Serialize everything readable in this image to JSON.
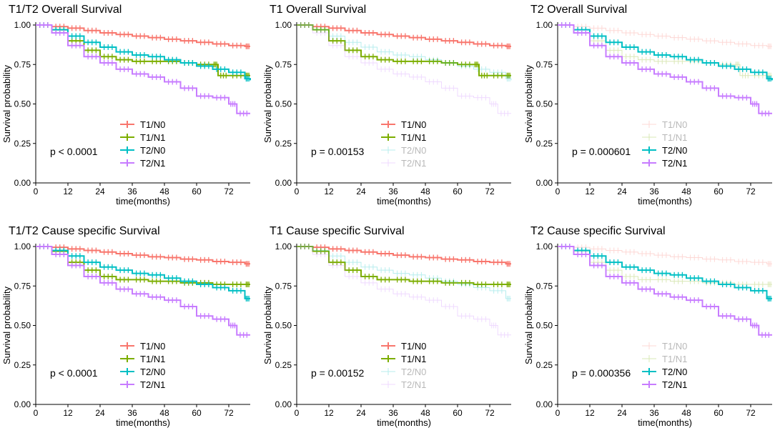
{
  "figure": {
    "colors": {
      "T1/N0": "#f8766d",
      "T1/N1": "#7cae00",
      "T2/N0": "#00bfc4",
      "T2/N1": "#c77cff"
    },
    "x_axis_label": "time(months)",
    "y_axis_label": "Survival probability",
    "y_ticks": [
      "0.00",
      "0.25",
      "0.50",
      "0.75",
      "1.00"
    ],
    "x_ticks": [
      "0",
      "12",
      "24",
      "36",
      "48",
      "60",
      "72"
    ]
  },
  "chart_data": [
    {
      "type": "line",
      "title": "T1/T2 Overall Survival",
      "p_value": "p < 0.0001",
      "xlabel": "time(months)",
      "ylabel": "Survival probability",
      "xlim": [
        0,
        80
      ],
      "ylim": [
        0,
        1
      ],
      "faded": [],
      "series": [
        {
          "name": "T1/N0",
          "x": [
            0,
            6,
            12,
            18,
            24,
            30,
            36,
            42,
            48,
            54,
            60,
            66,
            72,
            78,
            80
          ],
          "y": [
            1,
            0.99,
            0.98,
            0.965,
            0.95,
            0.94,
            0.93,
            0.92,
            0.91,
            0.9,
            0.89,
            0.88,
            0.87,
            0.865,
            0.865
          ]
        },
        {
          "name": "T1/N1",
          "x": [
            0,
            6,
            12,
            18,
            24,
            30,
            36,
            42,
            48,
            54,
            60,
            66,
            68,
            72,
            78,
            80
          ],
          "y": [
            1,
            0.97,
            0.9,
            0.84,
            0.8,
            0.78,
            0.77,
            0.77,
            0.77,
            0.76,
            0.75,
            0.75,
            0.68,
            0.68,
            0.68,
            0.68
          ]
        },
        {
          "name": "T2/N0",
          "x": [
            0,
            6,
            12,
            18,
            24,
            30,
            36,
            42,
            48,
            54,
            60,
            66,
            72,
            78,
            80
          ],
          "y": [
            1,
            0.97,
            0.93,
            0.89,
            0.86,
            0.83,
            0.81,
            0.8,
            0.78,
            0.76,
            0.74,
            0.72,
            0.7,
            0.66,
            0.65
          ]
        },
        {
          "name": "T2/N1",
          "x": [
            0,
            6,
            12,
            18,
            24,
            30,
            36,
            42,
            48,
            54,
            60,
            66,
            72,
            75,
            80
          ],
          "y": [
            1,
            0.95,
            0.87,
            0.8,
            0.76,
            0.72,
            0.69,
            0.67,
            0.64,
            0.6,
            0.55,
            0.54,
            0.5,
            0.44,
            0.44
          ]
        }
      ]
    },
    {
      "type": "line",
      "title": "T1 Overall Survival",
      "p_value": "p = 0.00153",
      "xlabel": "time(months)",
      "ylabel": "Survival probability",
      "xlim": [
        0,
        80
      ],
      "ylim": [
        0,
        1
      ],
      "faded": [
        "T2/N0",
        "T2/N1"
      ],
      "series": [
        {
          "name": "T1/N0",
          "x": [
            0,
            6,
            12,
            18,
            24,
            30,
            36,
            42,
            48,
            54,
            60,
            66,
            72,
            78,
            80
          ],
          "y": [
            1,
            0.99,
            0.98,
            0.965,
            0.95,
            0.94,
            0.93,
            0.92,
            0.91,
            0.9,
            0.89,
            0.88,
            0.87,
            0.865,
            0.865
          ]
        },
        {
          "name": "T1/N1",
          "x": [
            0,
            6,
            12,
            18,
            24,
            30,
            36,
            42,
            48,
            54,
            60,
            66,
            68,
            72,
            78,
            80
          ],
          "y": [
            1,
            0.97,
            0.9,
            0.84,
            0.8,
            0.78,
            0.77,
            0.77,
            0.77,
            0.76,
            0.75,
            0.75,
            0.68,
            0.68,
            0.68,
            0.68
          ]
        },
        {
          "name": "T2/N0",
          "x": [
            0,
            6,
            12,
            18,
            24,
            30,
            36,
            42,
            48,
            54,
            60,
            66,
            72,
            78,
            80
          ],
          "y": [
            1,
            0.97,
            0.93,
            0.89,
            0.86,
            0.83,
            0.81,
            0.8,
            0.78,
            0.76,
            0.74,
            0.72,
            0.7,
            0.66,
            0.65
          ]
        },
        {
          "name": "T2/N1",
          "x": [
            0,
            6,
            12,
            18,
            24,
            30,
            36,
            42,
            48,
            54,
            60,
            66,
            72,
            75,
            80
          ],
          "y": [
            1,
            0.95,
            0.87,
            0.8,
            0.76,
            0.72,
            0.69,
            0.67,
            0.64,
            0.6,
            0.55,
            0.54,
            0.5,
            0.44,
            0.44
          ]
        }
      ]
    },
    {
      "type": "line",
      "title": "T2 Overall Survival",
      "p_value": "p = 0.000601",
      "xlabel": "time(months)",
      "ylabel": "Survival probability",
      "xlim": [
        0,
        80
      ],
      "ylim": [
        0,
        1
      ],
      "faded": [
        "T1/N0",
        "T1/N1"
      ],
      "series": [
        {
          "name": "T1/N0",
          "x": [
            0,
            6,
            12,
            18,
            24,
            30,
            36,
            42,
            48,
            54,
            60,
            66,
            72,
            78,
            80
          ],
          "y": [
            1,
            0.99,
            0.98,
            0.965,
            0.95,
            0.94,
            0.93,
            0.92,
            0.91,
            0.9,
            0.89,
            0.88,
            0.87,
            0.865,
            0.865
          ]
        },
        {
          "name": "T1/N1",
          "x": [
            0,
            6,
            12,
            18,
            24,
            30,
            36,
            42,
            48,
            54,
            60,
            66,
            68,
            72,
            78,
            80
          ],
          "y": [
            1,
            0.97,
            0.9,
            0.84,
            0.8,
            0.78,
            0.77,
            0.77,
            0.77,
            0.76,
            0.75,
            0.75,
            0.68,
            0.68,
            0.68,
            0.68
          ]
        },
        {
          "name": "T2/N0",
          "x": [
            0,
            6,
            12,
            18,
            24,
            30,
            36,
            42,
            48,
            54,
            60,
            66,
            72,
            78,
            80
          ],
          "y": [
            1,
            0.97,
            0.93,
            0.89,
            0.86,
            0.83,
            0.81,
            0.8,
            0.78,
            0.76,
            0.74,
            0.72,
            0.7,
            0.66,
            0.65
          ]
        },
        {
          "name": "T2/N1",
          "x": [
            0,
            6,
            12,
            18,
            24,
            30,
            36,
            42,
            48,
            54,
            60,
            66,
            72,
            75,
            80
          ],
          "y": [
            1,
            0.95,
            0.87,
            0.8,
            0.76,
            0.72,
            0.69,
            0.67,
            0.64,
            0.6,
            0.55,
            0.54,
            0.5,
            0.44,
            0.44
          ]
        }
      ]
    },
    {
      "type": "line",
      "title": "T1/T2 Cause specific Survival",
      "p_value": "p < 0.0001",
      "xlabel": "time(months)",
      "ylabel": "Survival probability",
      "xlim": [
        0,
        80
      ],
      "ylim": [
        0,
        1
      ],
      "faded": [],
      "series": [
        {
          "name": "T1/N0",
          "x": [
            0,
            6,
            12,
            18,
            24,
            30,
            36,
            42,
            48,
            54,
            60,
            66,
            72,
            78,
            80
          ],
          "y": [
            1,
            0.995,
            0.985,
            0.975,
            0.965,
            0.955,
            0.945,
            0.935,
            0.93,
            0.92,
            0.915,
            0.905,
            0.9,
            0.89,
            0.89
          ]
        },
        {
          "name": "T1/N1",
          "x": [
            0,
            6,
            12,
            18,
            24,
            30,
            36,
            42,
            48,
            54,
            60,
            66,
            72,
            78,
            80
          ],
          "y": [
            1,
            0.97,
            0.9,
            0.85,
            0.81,
            0.79,
            0.79,
            0.78,
            0.78,
            0.77,
            0.77,
            0.76,
            0.76,
            0.76,
            0.76
          ]
        },
        {
          "name": "T2/N0",
          "x": [
            0,
            6,
            12,
            18,
            24,
            30,
            36,
            42,
            48,
            54,
            60,
            66,
            72,
            78,
            80
          ],
          "y": [
            1,
            0.975,
            0.94,
            0.9,
            0.87,
            0.85,
            0.83,
            0.82,
            0.8,
            0.78,
            0.76,
            0.74,
            0.72,
            0.67,
            0.67
          ]
        },
        {
          "name": "T2/N1",
          "x": [
            0,
            6,
            12,
            18,
            24,
            30,
            36,
            42,
            48,
            54,
            60,
            66,
            72,
            75,
            80
          ],
          "y": [
            1,
            0.95,
            0.88,
            0.81,
            0.77,
            0.73,
            0.7,
            0.68,
            0.66,
            0.62,
            0.56,
            0.54,
            0.5,
            0.44,
            0.44
          ]
        }
      ]
    },
    {
      "type": "line",
      "title": "T1 Cause specific Survival",
      "p_value": "p = 0.00152",
      "xlabel": "time(months)",
      "ylabel": "Survival probability",
      "xlim": [
        0,
        80
      ],
      "ylim": [
        0,
        1
      ],
      "faded": [
        "T2/N0",
        "T2/N1"
      ],
      "series": [
        {
          "name": "T1/N0",
          "x": [
            0,
            6,
            12,
            18,
            24,
            30,
            36,
            42,
            48,
            54,
            60,
            66,
            72,
            78,
            80
          ],
          "y": [
            1,
            0.995,
            0.985,
            0.975,
            0.965,
            0.955,
            0.945,
            0.935,
            0.93,
            0.92,
            0.915,
            0.905,
            0.9,
            0.89,
            0.89
          ]
        },
        {
          "name": "T1/N1",
          "x": [
            0,
            6,
            12,
            18,
            24,
            30,
            36,
            42,
            48,
            54,
            60,
            66,
            72,
            78,
            80
          ],
          "y": [
            1,
            0.97,
            0.9,
            0.85,
            0.81,
            0.79,
            0.79,
            0.78,
            0.78,
            0.77,
            0.77,
            0.76,
            0.76,
            0.76,
            0.76
          ]
        },
        {
          "name": "T2/N0",
          "x": [
            0,
            6,
            12,
            18,
            24,
            30,
            36,
            42,
            48,
            54,
            60,
            66,
            72,
            78,
            80
          ],
          "y": [
            1,
            0.975,
            0.94,
            0.9,
            0.87,
            0.85,
            0.83,
            0.82,
            0.8,
            0.78,
            0.76,
            0.74,
            0.72,
            0.67,
            0.67
          ]
        },
        {
          "name": "T2/N1",
          "x": [
            0,
            6,
            12,
            18,
            24,
            30,
            36,
            42,
            48,
            54,
            60,
            66,
            72,
            75,
            80
          ],
          "y": [
            1,
            0.95,
            0.88,
            0.81,
            0.77,
            0.73,
            0.7,
            0.68,
            0.66,
            0.62,
            0.56,
            0.54,
            0.5,
            0.44,
            0.44
          ]
        }
      ]
    },
    {
      "type": "line",
      "title": "T2 Cause specific Survival",
      "p_value": "p = 0.000356",
      "xlabel": "time(months)",
      "ylabel": "Survival probability",
      "xlim": [
        0,
        80
      ],
      "ylim": [
        0,
        1
      ],
      "faded": [
        "T1/N0",
        "T1/N1"
      ],
      "series": [
        {
          "name": "T1/N0",
          "x": [
            0,
            6,
            12,
            18,
            24,
            30,
            36,
            42,
            48,
            54,
            60,
            66,
            72,
            78,
            80
          ],
          "y": [
            1,
            0.995,
            0.985,
            0.975,
            0.965,
            0.955,
            0.945,
            0.935,
            0.93,
            0.92,
            0.915,
            0.905,
            0.9,
            0.89,
            0.89
          ]
        },
        {
          "name": "T1/N1",
          "x": [
            0,
            6,
            12,
            18,
            24,
            30,
            36,
            42,
            48,
            54,
            60,
            66,
            72,
            78,
            80
          ],
          "y": [
            1,
            0.97,
            0.9,
            0.85,
            0.81,
            0.79,
            0.79,
            0.78,
            0.78,
            0.77,
            0.77,
            0.76,
            0.76,
            0.76,
            0.76
          ]
        },
        {
          "name": "T2/N0",
          "x": [
            0,
            6,
            12,
            18,
            24,
            30,
            36,
            42,
            48,
            54,
            60,
            66,
            72,
            78,
            80
          ],
          "y": [
            1,
            0.975,
            0.94,
            0.9,
            0.87,
            0.85,
            0.83,
            0.82,
            0.8,
            0.78,
            0.76,
            0.74,
            0.72,
            0.67,
            0.67
          ]
        },
        {
          "name": "T2/N1",
          "x": [
            0,
            6,
            12,
            18,
            24,
            30,
            36,
            42,
            48,
            54,
            60,
            66,
            72,
            75,
            80
          ],
          "y": [
            1,
            0.95,
            0.88,
            0.81,
            0.77,
            0.73,
            0.7,
            0.68,
            0.66,
            0.62,
            0.56,
            0.54,
            0.5,
            0.44,
            0.44
          ]
        }
      ]
    }
  ]
}
